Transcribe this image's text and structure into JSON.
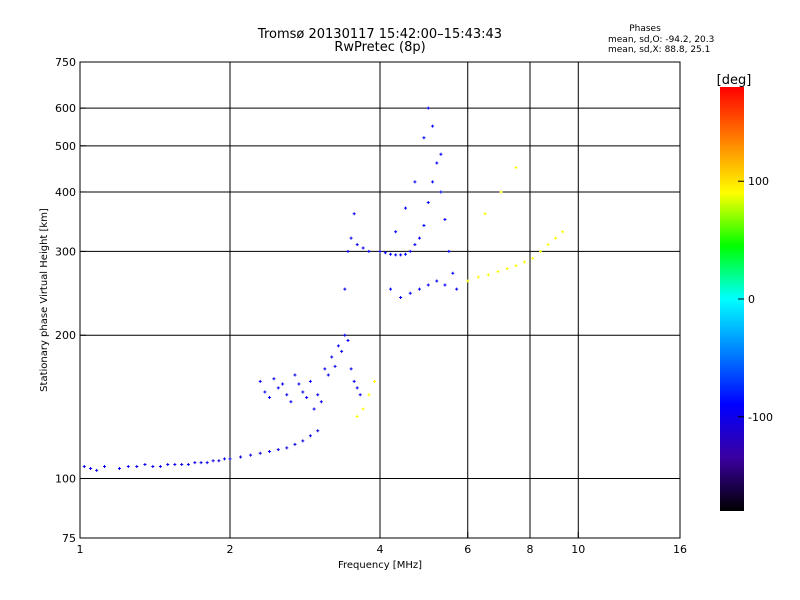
{
  "chart_data": {
    "type": "scatter",
    "title": "Tromsø 20130117 15:42:00–15:43:43",
    "subtitle": "RwPretec (8p)",
    "stats": {
      "heading": "Phases",
      "line1": "mean, sd,O: -94.2, 20.3",
      "line2": "mean, sd,X:  88.8, 25.1"
    },
    "xlabel": "Frequency [MHz]",
    "ylabel": "Stationary phase Virtual Height [km]",
    "xscale": "log",
    "yscale": "log",
    "xlim": [
      1,
      16
    ],
    "ylim": [
      75,
      750
    ],
    "x_ticks": [
      1,
      2,
      4,
      6,
      8,
      10,
      16
    ],
    "x_tick_labels": [
      "1",
      "2",
      "4",
      "6",
      "8",
      "10",
      "16"
    ],
    "y_ticks": [
      75,
      100,
      200,
      300,
      400,
      500,
      600,
      750
    ],
    "y_tick_labels": [
      "75",
      "100",
      "200",
      "300",
      "400",
      "500",
      "600",
      "750"
    ],
    "grid": true,
    "colorbar": {
      "label": "[deg]",
      "range": [
        -180,
        180
      ],
      "ticks": [
        100,
        0,
        -100
      ],
      "tick_labels": [
        "100",
        "0",
        "-100"
      ],
      "colors": [
        "#000000",
        "#3a00a0",
        "#0000ff",
        "#0080ff",
        "#00ffff",
        "#00ff00",
        "#ffff00",
        "#ff8000",
        "#ff0000"
      ]
    },
    "series": [
      {
        "trace": "O-mode lower F-layer trace",
        "phase_deg": -100,
        "points": [
          [
            1.02,
            106
          ],
          [
            1.05,
            105
          ],
          [
            1.08,
            104
          ],
          [
            1.12,
            106
          ],
          [
            1.2,
            105
          ],
          [
            1.25,
            106
          ],
          [
            1.3,
            106
          ],
          [
            1.35,
            107
          ],
          [
            1.4,
            106
          ],
          [
            1.45,
            106
          ],
          [
            1.5,
            107
          ],
          [
            1.55,
            107
          ],
          [
            1.6,
            107
          ],
          [
            1.65,
            107
          ],
          [
            1.7,
            108
          ],
          [
            1.75,
            108
          ],
          [
            1.8,
            108
          ],
          [
            1.85,
            109
          ],
          [
            1.9,
            109
          ],
          [
            1.95,
            110
          ],
          [
            2.0,
            110
          ],
          [
            2.1,
            111
          ],
          [
            2.2,
            112
          ],
          [
            2.3,
            113
          ],
          [
            2.4,
            114
          ],
          [
            2.5,
            115
          ],
          [
            2.6,
            116
          ],
          [
            2.7,
            118
          ],
          [
            2.8,
            120
          ],
          [
            2.9,
            123
          ],
          [
            3.0,
            126
          ]
        ]
      },
      {
        "trace": "O-mode F-layer cusp",
        "phase_deg": -95,
        "points": [
          [
            2.3,
            160
          ],
          [
            2.35,
            152
          ],
          [
            2.4,
            148
          ],
          [
            2.45,
            162
          ],
          [
            2.5,
            155
          ],
          [
            2.55,
            158
          ],
          [
            2.6,
            150
          ],
          [
            2.65,
            145
          ],
          [
            2.7,
            165
          ],
          [
            2.75,
            158
          ],
          [
            2.8,
            152
          ],
          [
            2.85,
            148
          ],
          [
            2.9,
            160
          ],
          [
            2.95,
            140
          ],
          [
            3.0,
            150
          ],
          [
            3.05,
            145
          ],
          [
            3.1,
            170
          ],
          [
            3.15,
            165
          ],
          [
            3.2,
            180
          ],
          [
            3.25,
            172
          ],
          [
            3.3,
            190
          ],
          [
            3.35,
            185
          ],
          [
            3.4,
            200
          ],
          [
            3.45,
            195
          ],
          [
            3.5,
            170
          ],
          [
            3.55,
            160
          ],
          [
            3.6,
            155
          ],
          [
            3.65,
            150
          ],
          [
            3.4,
            250
          ],
          [
            3.45,
            300
          ],
          [
            3.5,
            320
          ],
          [
            3.55,
            360
          ],
          [
            3.6,
            310
          ],
          [
            3.7,
            305
          ],
          [
            3.8,
            300
          ]
        ]
      },
      {
        "trace": "O-mode upper F-layer",
        "phase_deg": -90,
        "points": [
          [
            4.0,
            300
          ],
          [
            4.1,
            298
          ],
          [
            4.2,
            296
          ],
          [
            4.3,
            295
          ],
          [
            4.4,
            295
          ],
          [
            4.5,
            296
          ],
          [
            4.6,
            300
          ],
          [
            4.7,
            310
          ],
          [
            4.8,
            320
          ],
          [
            4.9,
            340
          ],
          [
            5.0,
            380
          ],
          [
            5.1,
            420
          ],
          [
            5.2,
            460
          ],
          [
            5.3,
            400
          ],
          [
            5.4,
            350
          ],
          [
            5.5,
            300
          ],
          [
            5.6,
            270
          ],
          [
            5.7,
            250
          ],
          [
            4.2,
            250
          ],
          [
            4.4,
            240
          ],
          [
            4.6,
            245
          ],
          [
            4.8,
            250
          ],
          [
            5.0,
            255
          ],
          [
            5.2,
            260
          ],
          [
            5.4,
            255
          ],
          [
            4.3,
            330
          ],
          [
            4.5,
            370
          ],
          [
            4.7,
            420
          ],
          [
            4.9,
            520
          ],
          [
            5.0,
            600
          ],
          [
            5.1,
            550
          ],
          [
            5.3,
            480
          ]
        ]
      },
      {
        "trace": "X-mode trace",
        "phase_deg": 90,
        "points": [
          [
            3.6,
            135
          ],
          [
            3.7,
            140
          ],
          [
            3.8,
            150
          ],
          [
            3.9,
            160
          ],
          [
            6.0,
            260
          ],
          [
            6.3,
            265
          ],
          [
            6.6,
            268
          ],
          [
            6.9,
            272
          ],
          [
            7.2,
            276
          ],
          [
            7.5,
            280
          ],
          [
            7.8,
            285
          ],
          [
            8.1,
            290
          ],
          [
            8.4,
            300
          ],
          [
            8.7,
            310
          ],
          [
            9.0,
            320
          ],
          [
            9.3,
            330
          ],
          [
            6.5,
            360
          ],
          [
            7.0,
            400
          ],
          [
            7.5,
            450
          ]
        ]
      }
    ]
  }
}
